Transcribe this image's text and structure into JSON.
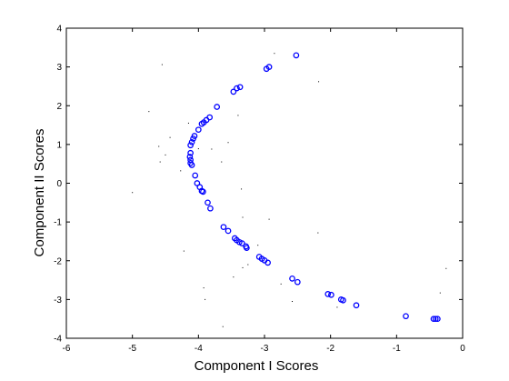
{
  "chart_data": {
    "type": "scatter",
    "xlabel": "Component I Scores",
    "ylabel": "Component II Scores",
    "xlim": [
      -6,
      0
    ],
    "ylim": [
      -4,
      4
    ],
    "xticks": [
      "-6",
      "-5",
      "-4",
      "-3",
      "-2",
      "-1",
      "0"
    ],
    "yticks": [
      "-4",
      "-3",
      "-2",
      "-1",
      "0",
      "1",
      "2",
      "3",
      "4"
    ],
    "grid": false,
    "box": true,
    "marker_color": "#0000ff",
    "dot_color": "#000000",
    "series": [
      {
        "marker": "circle",
        "points": [
          [
            -2.52,
            3.3
          ],
          [
            -2.93,
            3.0
          ],
          [
            -2.97,
            2.95
          ],
          [
            -3.37,
            2.48
          ],
          [
            -3.42,
            2.45
          ],
          [
            -3.47,
            2.36
          ],
          [
            -3.72,
            1.97
          ],
          [
            -3.83,
            1.7
          ],
          [
            -3.88,
            1.63
          ],
          [
            -3.92,
            1.57
          ],
          [
            -3.95,
            1.53
          ],
          [
            -4.0,
            1.38
          ],
          [
            -4.06,
            1.22
          ],
          [
            -4.08,
            1.15
          ],
          [
            -4.1,
            1.06
          ],
          [
            -4.12,
            0.98
          ],
          [
            -4.12,
            0.78
          ],
          [
            -4.13,
            0.68
          ],
          [
            -4.12,
            0.6
          ],
          [
            -4.12,
            0.52
          ],
          [
            -4.1,
            0.47
          ],
          [
            -4.05,
            0.2
          ],
          [
            -4.02,
            0.0
          ],
          [
            -3.98,
            -0.1
          ],
          [
            -3.95,
            -0.2
          ],
          [
            -3.93,
            -0.22
          ],
          [
            -3.86,
            -0.5
          ],
          [
            -3.82,
            -0.65
          ],
          [
            -3.62,
            -1.13
          ],
          [
            -3.55,
            -1.23
          ],
          [
            -3.45,
            -1.42
          ],
          [
            -3.42,
            -1.47
          ],
          [
            -3.38,
            -1.52
          ],
          [
            -3.34,
            -1.55
          ],
          [
            -3.28,
            -1.63
          ],
          [
            -3.27,
            -1.67
          ],
          [
            -3.08,
            -1.9
          ],
          [
            -3.04,
            -1.95
          ],
          [
            -3.0,
            -1.99
          ],
          [
            -2.95,
            -2.05
          ],
          [
            -2.58,
            -2.46
          ],
          [
            -2.5,
            -2.55
          ],
          [
            -2.04,
            -2.86
          ],
          [
            -1.99,
            -2.88
          ],
          [
            -1.84,
            -3.0
          ],
          [
            -1.81,
            -3.02
          ],
          [
            -1.61,
            -3.15
          ],
          [
            -0.86,
            -3.43
          ],
          [
            -0.44,
            -3.5
          ],
          [
            -0.41,
            -3.5
          ],
          [
            -0.38,
            -3.5
          ]
        ]
      },
      {
        "marker": "dot",
        "points": [
          [
            -4.55,
            3.06
          ],
          [
            -4.75,
            1.85
          ],
          [
            -2.18,
            2.62
          ],
          [
            -3.8,
            0.88
          ],
          [
            -4.0,
            0.89
          ],
          [
            -4.5,
            0.73
          ],
          [
            -4.43,
            1.18
          ],
          [
            -4.27,
            0.32
          ],
          [
            -5.0,
            -0.24
          ],
          [
            -3.33,
            -0.88
          ],
          [
            -2.93,
            -0.93
          ],
          [
            -4.22,
            -1.75
          ],
          [
            -2.19,
            -1.28
          ],
          [
            -3.1,
            -1.6
          ],
          [
            -3.47,
            -2.42
          ],
          [
            -0.25,
            -2.2
          ],
          [
            -0.34,
            -2.83
          ],
          [
            -3.63,
            -3.7
          ],
          [
            -3.9,
            -3.0
          ],
          [
            -3.55,
            1.05
          ],
          [
            -3.65,
            0.55
          ],
          [
            -3.35,
            -0.15
          ],
          [
            -4.6,
            0.95
          ],
          [
            -3.25,
            -2.1
          ],
          [
            -2.75,
            -2.6
          ],
          [
            -1.9,
            -3.2
          ],
          [
            -3.4,
            1.75
          ],
          [
            -4.15,
            1.55
          ],
          [
            -3.92,
            -2.7
          ],
          [
            -3.33,
            -2.18
          ],
          [
            -4.58,
            0.55
          ],
          [
            -2.85,
            3.35
          ],
          [
            -2.58,
            -3.05
          ]
        ]
      }
    ]
  }
}
